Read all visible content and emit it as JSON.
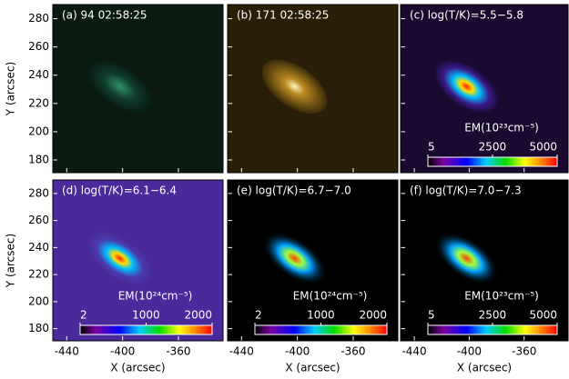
{
  "chart_data": [
    {
      "type": "image",
      "title": "(a) 94 02:58:25",
      "ylabel": "Y (arcsec)",
      "xlim": [
        -450,
        -328
      ],
      "ylim": [
        171,
        290
      ],
      "xticks": [
        -440,
        -400,
        -360
      ],
      "yticks": [
        180,
        200,
        220,
        240,
        260,
        280
      ]
    },
    {
      "type": "image",
      "title": "(b) 171 02:58:25",
      "xlim": [
        -450,
        -328
      ],
      "ylim": [
        171,
        290
      ],
      "xticks": [
        -440,
        -400,
        -360
      ],
      "yticks": [
        180,
        200,
        220,
        240,
        260,
        280
      ]
    },
    {
      "type": "image",
      "title": "(c) log(T/K)=5.5−5.8",
      "xlim": [
        -450,
        -328
      ],
      "ylim": [
        171,
        290
      ],
      "xticks": [
        -440,
        -400,
        -360
      ],
      "yticks": [
        180,
        200,
        220,
        240,
        260,
        280
      ],
      "colorbar": {
        "label": "EM(10²³cm⁻⁵)",
        "lim": [
          5,
          5000
        ],
        "ticks": [
          5,
          2500,
          5000
        ]
      }
    },
    {
      "type": "image",
      "title": "(d) log(T/K)=6.1−6.4",
      "ylabel": "Y (arcsec)",
      "xlabel": "X (arcsec)",
      "xlim": [
        -450,
        -328
      ],
      "ylim": [
        171,
        290
      ],
      "xticks": [
        -440,
        -400,
        -360
      ],
      "yticks": [
        180,
        200,
        220,
        240,
        260,
        280
      ],
      "colorbar": {
        "label": "EM(10²⁴cm⁻⁵)",
        "lim": [
          2,
          2000
        ],
        "ticks": [
          2,
          1000,
          2000
        ]
      }
    },
    {
      "type": "image",
      "title": "(e) log(T/K)=6.7−7.0",
      "xlabel": "X (arcsec)",
      "xlim": [
        -450,
        -328
      ],
      "ylim": [
        171,
        290
      ],
      "xticks": [
        -440,
        -400,
        -360
      ],
      "yticks": [
        180,
        200,
        220,
        240,
        260,
        280
      ],
      "colorbar": {
        "label": "EM(10²⁴cm⁻⁵)",
        "lim": [
          2,
          2000
        ],
        "ticks": [
          2,
          1000,
          2000
        ]
      }
    },
    {
      "type": "image",
      "title": "(f) log(T/K)=7.0−7.3",
      "xlabel": "X (arcsec)",
      "xlim": [
        -450,
        -328
      ],
      "ylim": [
        171,
        290
      ],
      "xticks": [
        -440,
        -400,
        -360
      ],
      "yticks": [
        180,
        200,
        220,
        240,
        260,
        280
      ],
      "colorbar": {
        "label": "EM(10²³cm⁻⁵)",
        "lim": [
          5,
          5000
        ],
        "ticks": [
          5,
          2500,
          5000
        ]
      }
    }
  ]
}
